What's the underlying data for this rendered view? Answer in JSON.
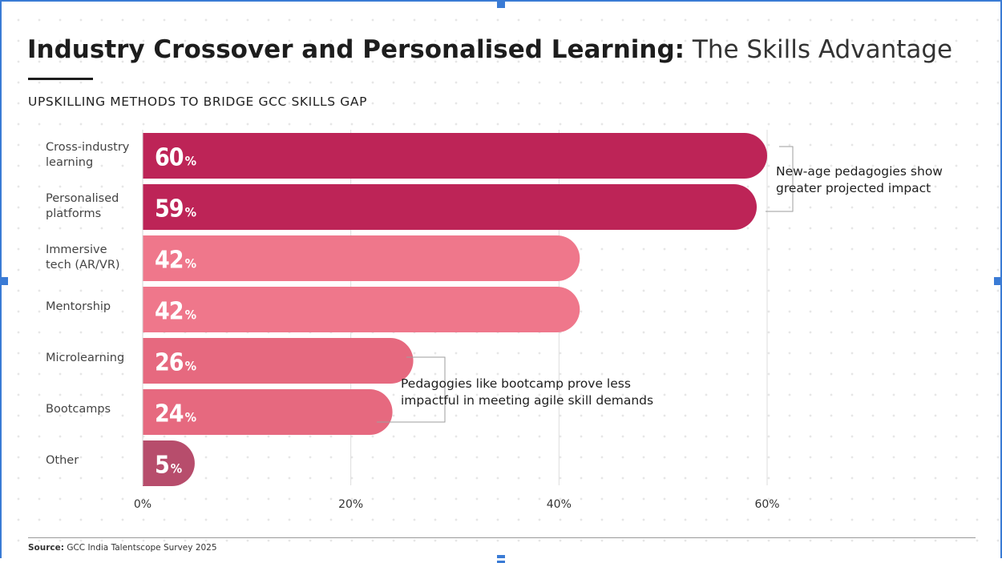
{
  "title": {
    "bold": "Industry Crossover and Personalised Learning:",
    "light": " The Skills Advantage"
  },
  "subtitle": "UPSKILLING METHODS TO BRIDGE GCC SKILLS GAP",
  "chart_data": {
    "type": "bar",
    "orientation": "horizontal",
    "title": "UPSKILLING METHODS TO BRIDGE GCC SKILLS GAP",
    "categories": [
      "Cross-industry learning",
      "Personalised platforms",
      "Immersive tech (AR/VR)",
      "Mentorship",
      "Microlearning",
      "Bootcamps",
      "Other"
    ],
    "values": [
      60,
      59,
      42,
      42,
      26,
      24,
      5
    ],
    "value_suffix": "%",
    "bar_colors": [
      "#bd2457",
      "#bd2457",
      "#ef778b",
      "#ef778b",
      "#e6697f",
      "#e6697f",
      "#b74d6c"
    ],
    "x_ticks": [
      "0%",
      "20%",
      "40%",
      "60%"
    ],
    "x_tick_values": [
      0,
      20,
      40,
      60
    ],
    "xlim": [
      0,
      60
    ],
    "grid": true,
    "annotations": [
      "New-age pedagogies show greater projected impact",
      "Pedagogies like bootcamp prove less impactful in meeting agile skill demands"
    ]
  },
  "labels": [
    [
      "Cross-industry",
      "learning"
    ],
    [
      "Personalised",
      "platforms"
    ],
    [
      "Immersive",
      "tech (AR/VR)"
    ],
    [
      "Mentorship"
    ],
    [
      "Microlearning"
    ],
    [
      "Bootcamps"
    ],
    [
      "Other"
    ]
  ],
  "notes": {
    "top": [
      "New-age pedagogies show",
      "greater projected impact"
    ],
    "bottom": [
      "Pedagogies like bootcamp prove less",
      "impactful in meeting agile skill demands"
    ]
  },
  "source": {
    "label": "Source:",
    "text": " GCC India Talentscope Survey 2025"
  }
}
